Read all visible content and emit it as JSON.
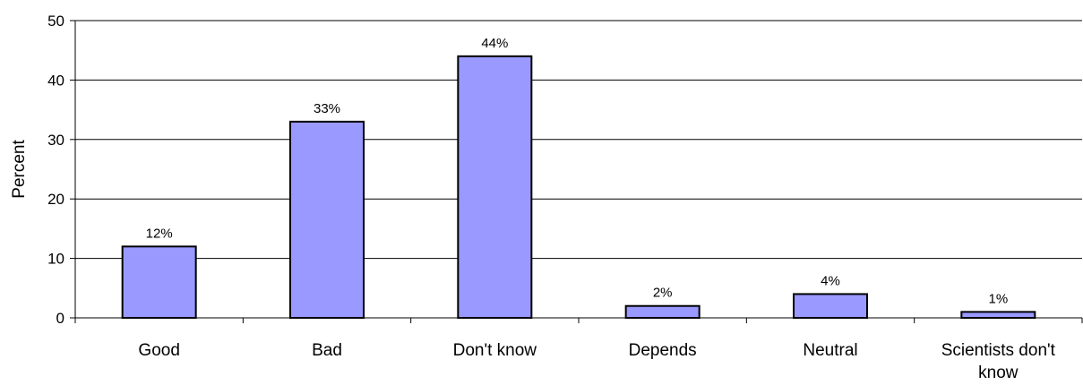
{
  "chart_data": {
    "type": "bar",
    "title": "",
    "xlabel": "",
    "ylabel": "Percent",
    "categories": [
      "Good",
      "Bad",
      "Don't know",
      "Depends",
      "Neutral",
      "Scientists don't know"
    ],
    "category_lines": [
      [
        "Good"
      ],
      [
        "Bad"
      ],
      [
        "Don't know"
      ],
      [
        "Depends"
      ],
      [
        "Neutral"
      ],
      [
        "Scientists don't",
        "know"
      ]
    ],
    "values": [
      12,
      33,
      44,
      2,
      4,
      1
    ],
    "data_labels": [
      "12%",
      "33%",
      "44%",
      "2%",
      "4%",
      "1%"
    ],
    "ylim": [
      0,
      50
    ],
    "yticks": [
      0,
      10,
      20,
      30,
      40,
      50
    ],
    "ytick_labels": [
      "0",
      "10",
      "20",
      "30",
      "40",
      "50"
    ],
    "grid": true,
    "legend": "none",
    "bar_color": "#9999ff"
  }
}
